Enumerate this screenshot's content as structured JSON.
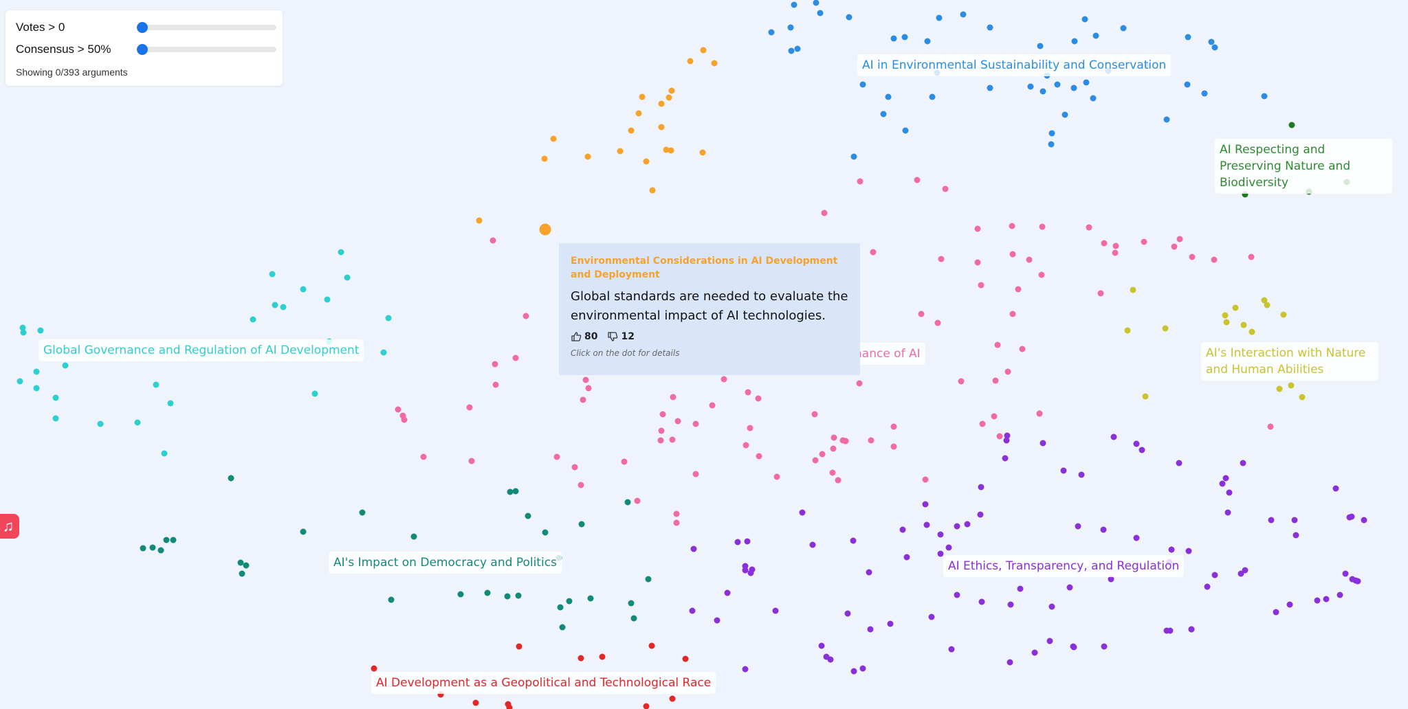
{
  "controls": {
    "votes_label": "Votes > 0",
    "votes_value": 0,
    "consensus_label": "Consensus > 50%",
    "consensus_value": 0,
    "showing_text": "Showing 0/393 arguments"
  },
  "clusters": [
    {
      "name": "AI in Environmental Sustainability and Conservation",
      "color": "#2b8ce3"
    },
    {
      "name": "AI Respecting and Preserving Nature and Biodiversity",
      "color": "#2e8b2e"
    },
    {
      "name": "AI's Interaction with Nature and Human Abilities",
      "color": "#c9c42e"
    },
    {
      "name": "Global Governance and Regulation of AI Development",
      "color": "#2ecfcf"
    },
    {
      "name": "AI's Impact on Democracy and Politics",
      "color": "#128a7a"
    },
    {
      "name": "AI Ethics, Transparency, and Regulation",
      "color": "#8a30d8"
    },
    {
      "name": "AI Development as a Geopolitical and Technological Race",
      "color": "#e32626"
    },
    {
      "name": "nance of AI",
      "color": "#f06aa8"
    }
  ],
  "cluster_colors": {
    "orange": "#f6a22b",
    "blue": "#2b8ce3",
    "darkgreen": "#1e7a1e",
    "olive": "#c9c42e",
    "cyan": "#2ecfcf",
    "teal": "#128a7a",
    "purple": "#8a30d8",
    "red": "#e32626",
    "pink": "#f06aa8"
  },
  "tooltip": {
    "topic": "Environmental Considerations in AI Development and Deployment",
    "text": "Global standards are needed to evaluate the environmental impact of AI technologies.",
    "upvotes": "80",
    "downvotes": "12",
    "hint": "Click on the dot for details"
  },
  "dock": {
    "icon": "music-icon",
    "glyph": "♫"
  }
}
